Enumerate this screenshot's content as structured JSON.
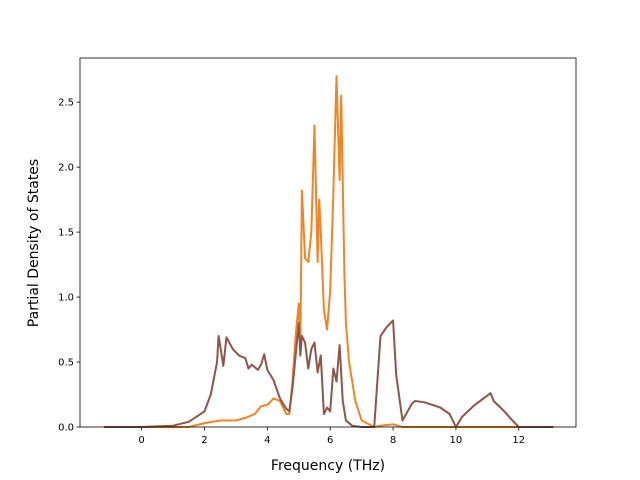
{
  "chart_data": {
    "type": "line",
    "x_label": "Frequency (THz)",
    "y_label": "Partial Density of States",
    "xlim": [
      -1.96,
      13.82
    ],
    "ylim": [
      0,
      2.84
    ],
    "xticks": [
      0,
      2,
      4,
      6,
      8,
      10,
      12
    ],
    "yticks": [
      {
        "value": 0,
        "label": "0.0"
      },
      {
        "value": 0.5,
        "label": "0.5"
      },
      {
        "value": 1,
        "label": "1.0"
      },
      {
        "value": 1.5,
        "label": "1.5"
      },
      {
        "value": 2,
        "label": "2.0"
      },
      {
        "value": 2.5,
        "label": "2.5"
      }
    ],
    "series": [
      {
        "color": "#ef8524",
        "x": [
          -1.2,
          1.5,
          2,
          2.5,
          3,
          3.3,
          3.6,
          3.8,
          4,
          4.2,
          4.4,
          4.6,
          4.7,
          4.8,
          4.9,
          5,
          5.05,
          5.1,
          5.2,
          5.3,
          5.4,
          5.5,
          5.6,
          5.65,
          5.7,
          5.8,
          5.9,
          6,
          6.1,
          6.2,
          6.3,
          6.35,
          6.45,
          6.5,
          6.6,
          6.8,
          7,
          7.4,
          7.6,
          8,
          8.3,
          13.1
        ],
        "values": [
          0,
          0,
          0.03,
          0.05,
          0.05,
          0.07,
          0.1,
          0.16,
          0.17,
          0.22,
          0.2,
          0.1,
          0.1,
          0.35,
          0.7,
          0.95,
          0.6,
          1.82,
          1.3,
          1.27,
          1.5,
          2.32,
          1.27,
          1.75,
          1.5,
          0.9,
          0.75,
          1.05,
          1.8,
          2.7,
          1.9,
          2.55,
          1.2,
          0.8,
          0.5,
          0.2,
          0.05,
          0,
          0.01,
          0.02,
          0,
          0
        ]
      },
      {
        "color": "#8c564b",
        "x": [
          -1.2,
          0,
          1,
          1.5,
          2,
          2.2,
          2.4,
          2.45,
          2.55,
          2.6,
          2.7,
          2.9,
          3.1,
          3.3,
          3.4,
          3.5,
          3.7,
          3.8,
          3.9,
          4,
          4.2,
          4.4,
          4.6,
          4.7,
          4.8,
          4.9,
          5,
          5.05,
          5.1,
          5.2,
          5.3,
          5.4,
          5.5,
          5.6,
          5.7,
          5.8,
          5.9,
          6,
          6.1,
          6.2,
          6.3,
          6.4,
          6.5,
          6.7,
          7,
          7.4,
          7.6,
          7.8,
          8,
          8.1,
          8.3,
          8.6,
          8.7,
          9,
          9.5,
          9.8,
          10,
          10.2,
          10.6,
          11.1,
          11.2,
          11.5,
          11.8,
          12,
          13.1
        ],
        "values": [
          0,
          0,
          0.01,
          0.04,
          0.12,
          0.25,
          0.5,
          0.7,
          0.55,
          0.47,
          0.69,
          0.6,
          0.55,
          0.53,
          0.45,
          0.48,
          0.44,
          0.48,
          0.56,
          0.44,
          0.36,
          0.22,
          0.14,
          0.12,
          0.3,
          0.55,
          0.8,
          0.55,
          0.7,
          0.65,
          0.45,
          0.6,
          0.65,
          0.42,
          0.55,
          0.1,
          0.15,
          0.12,
          0.45,
          0.35,
          0.63,
          0.2,
          0.05,
          0.01,
          0,
          0,
          0.7,
          0.77,
          0.82,
          0.4,
          0.05,
          0.18,
          0.2,
          0.19,
          0.15,
          0.1,
          0,
          0.08,
          0.17,
          0.26,
          0.2,
          0.13,
          0.05,
          0,
          0
        ]
      }
    ]
  }
}
